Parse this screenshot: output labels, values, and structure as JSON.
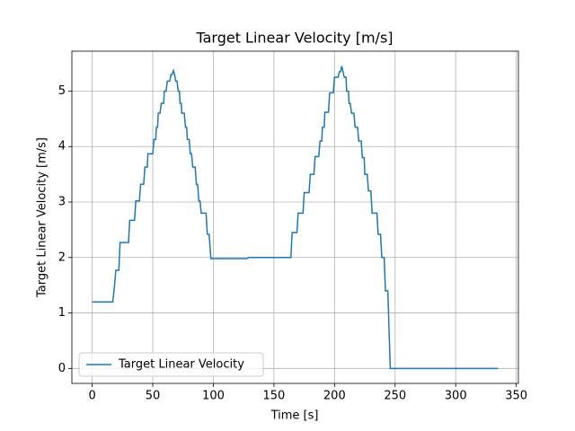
{
  "chart_data": {
    "type": "line",
    "title": "Target Linear Velocity [m/s]",
    "xlabel": "Time [s]",
    "ylabel": "Target Linear Velocity [m/s]",
    "x": [
      0,
      17,
      18.5,
      19.5,
      22,
      23,
      30,
      31,
      35,
      36,
      39,
      40,
      42.5,
      43.5,
      45.5,
      46,
      50,
      51,
      52.5,
      53,
      54,
      54.5,
      56,
      57,
      59,
      59.5,
      61,
      62,
      64,
      65,
      66,
      67,
      68,
      69,
      70,
      71,
      72,
      72.5,
      73.5,
      74,
      76,
      77,
      78,
      78.5,
      80,
      81,
      82,
      83,
      85,
      86,
      87,
      88,
      89,
      90,
      94,
      95,
      96.5,
      98,
      128,
      129,
      164,
      165,
      169,
      170,
      174,
      175,
      179,
      180,
      183,
      184,
      187,
      188,
      189.5,
      190,
      191.5,
      192,
      195,
      196,
      199,
      200,
      203,
      204,
      205,
      206,
      207,
      208,
      209.5,
      210,
      211.5,
      212,
      213,
      214,
      216,
      217,
      219,
      220,
      222,
      223,
      224.5,
      225,
      227,
      228,
      230,
      231,
      235,
      236,
      238,
      239,
      241,
      242,
      244,
      246,
      335
    ],
    "series": [
      {
        "name": "Target Linear Velocity",
        "color": "#1f77b4",
        "values": [
          1.2,
          1.2,
          1.5,
          1.77,
          1.77,
          2.27,
          2.27,
          2.67,
          2.67,
          3.02,
          3.02,
          3.32,
          3.32,
          3.63,
          3.63,
          3.87,
          3.87,
          4.13,
          4.13,
          4.35,
          4.35,
          4.6,
          4.6,
          4.78,
          4.78,
          5.0,
          5.0,
          5.18,
          5.18,
          5.3,
          5.3,
          5.37,
          5.3,
          5.18,
          5.18,
          5.0,
          5.0,
          4.78,
          4.78,
          4.6,
          4.6,
          4.35,
          4.35,
          4.13,
          4.13,
          3.87,
          3.87,
          3.63,
          3.63,
          3.32,
          3.32,
          3.02,
          3.02,
          2.8,
          2.8,
          2.42,
          2.42,
          1.98,
          1.98,
          2.0,
          2.0,
          2.45,
          2.45,
          2.8,
          2.8,
          3.17,
          3.17,
          3.5,
          3.5,
          3.82,
          3.82,
          4.1,
          4.1,
          4.35,
          4.35,
          4.62,
          4.62,
          4.97,
          4.97,
          5.25,
          5.25,
          5.35,
          5.35,
          5.45,
          5.35,
          5.25,
          5.25,
          5.0,
          5.0,
          4.78,
          4.78,
          4.6,
          4.6,
          4.35,
          4.35,
          4.1,
          4.1,
          3.8,
          3.8,
          3.5,
          3.5,
          3.2,
          3.2,
          2.8,
          2.8,
          2.42,
          2.42,
          2.0,
          2.0,
          1.4,
          1.4,
          0,
          0
        ]
      }
    ],
    "xlim": [
      -16.75,
      351.75
    ],
    "xticks": [
      0,
      50,
      100,
      150,
      200,
      250,
      300,
      350
    ],
    "ylim": [
      -0.27,
      5.72
    ],
    "yticks": [
      0,
      1,
      2,
      3,
      4,
      5
    ],
    "grid": true,
    "legend": "lower left"
  }
}
